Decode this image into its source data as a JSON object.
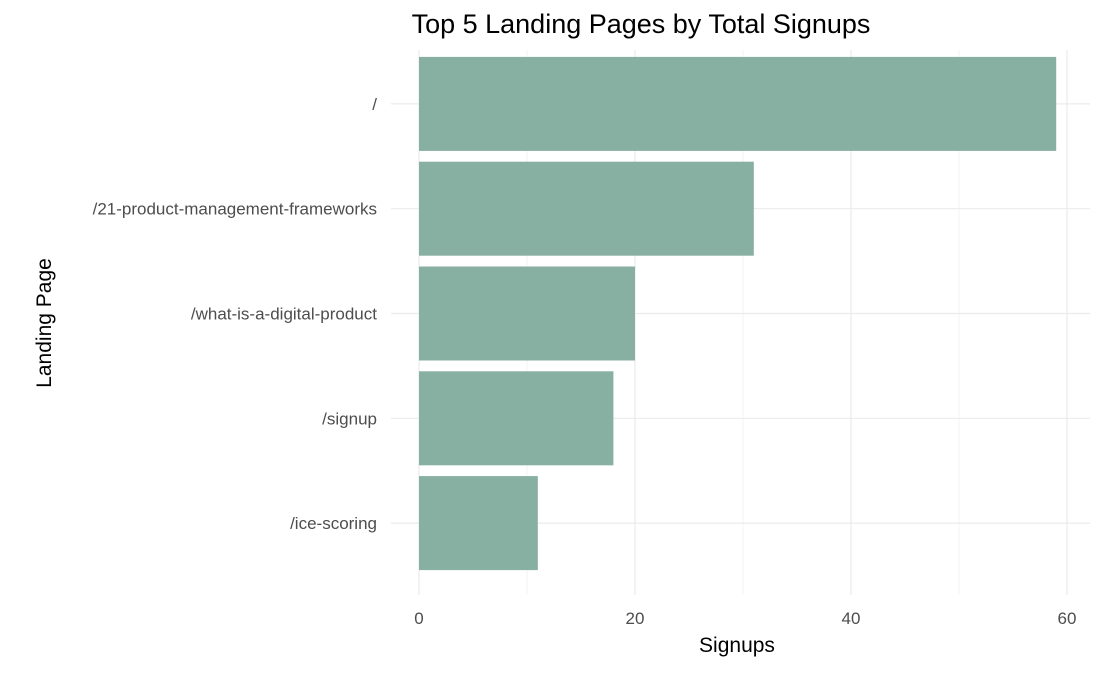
{
  "chart_data": {
    "type": "bar",
    "orientation": "horizontal",
    "title": "Top 5 Landing Pages by Total Signups",
    "xlabel": "Signups",
    "ylabel": "Landing Page",
    "categories": [
      "/",
      "/21-product-management-frameworks",
      "/what-is-a-digital-product",
      "/signup",
      "/ice-scoring"
    ],
    "values": [
      59,
      31,
      20,
      18,
      11
    ],
    "xlim": [
      0,
      62
    ],
    "xticks": [
      0,
      20,
      40,
      60
    ],
    "xtick_labels": [
      "0",
      "20",
      "40",
      "60"
    ],
    "grid": true,
    "legend": false,
    "bar_color": "#87afa2"
  }
}
